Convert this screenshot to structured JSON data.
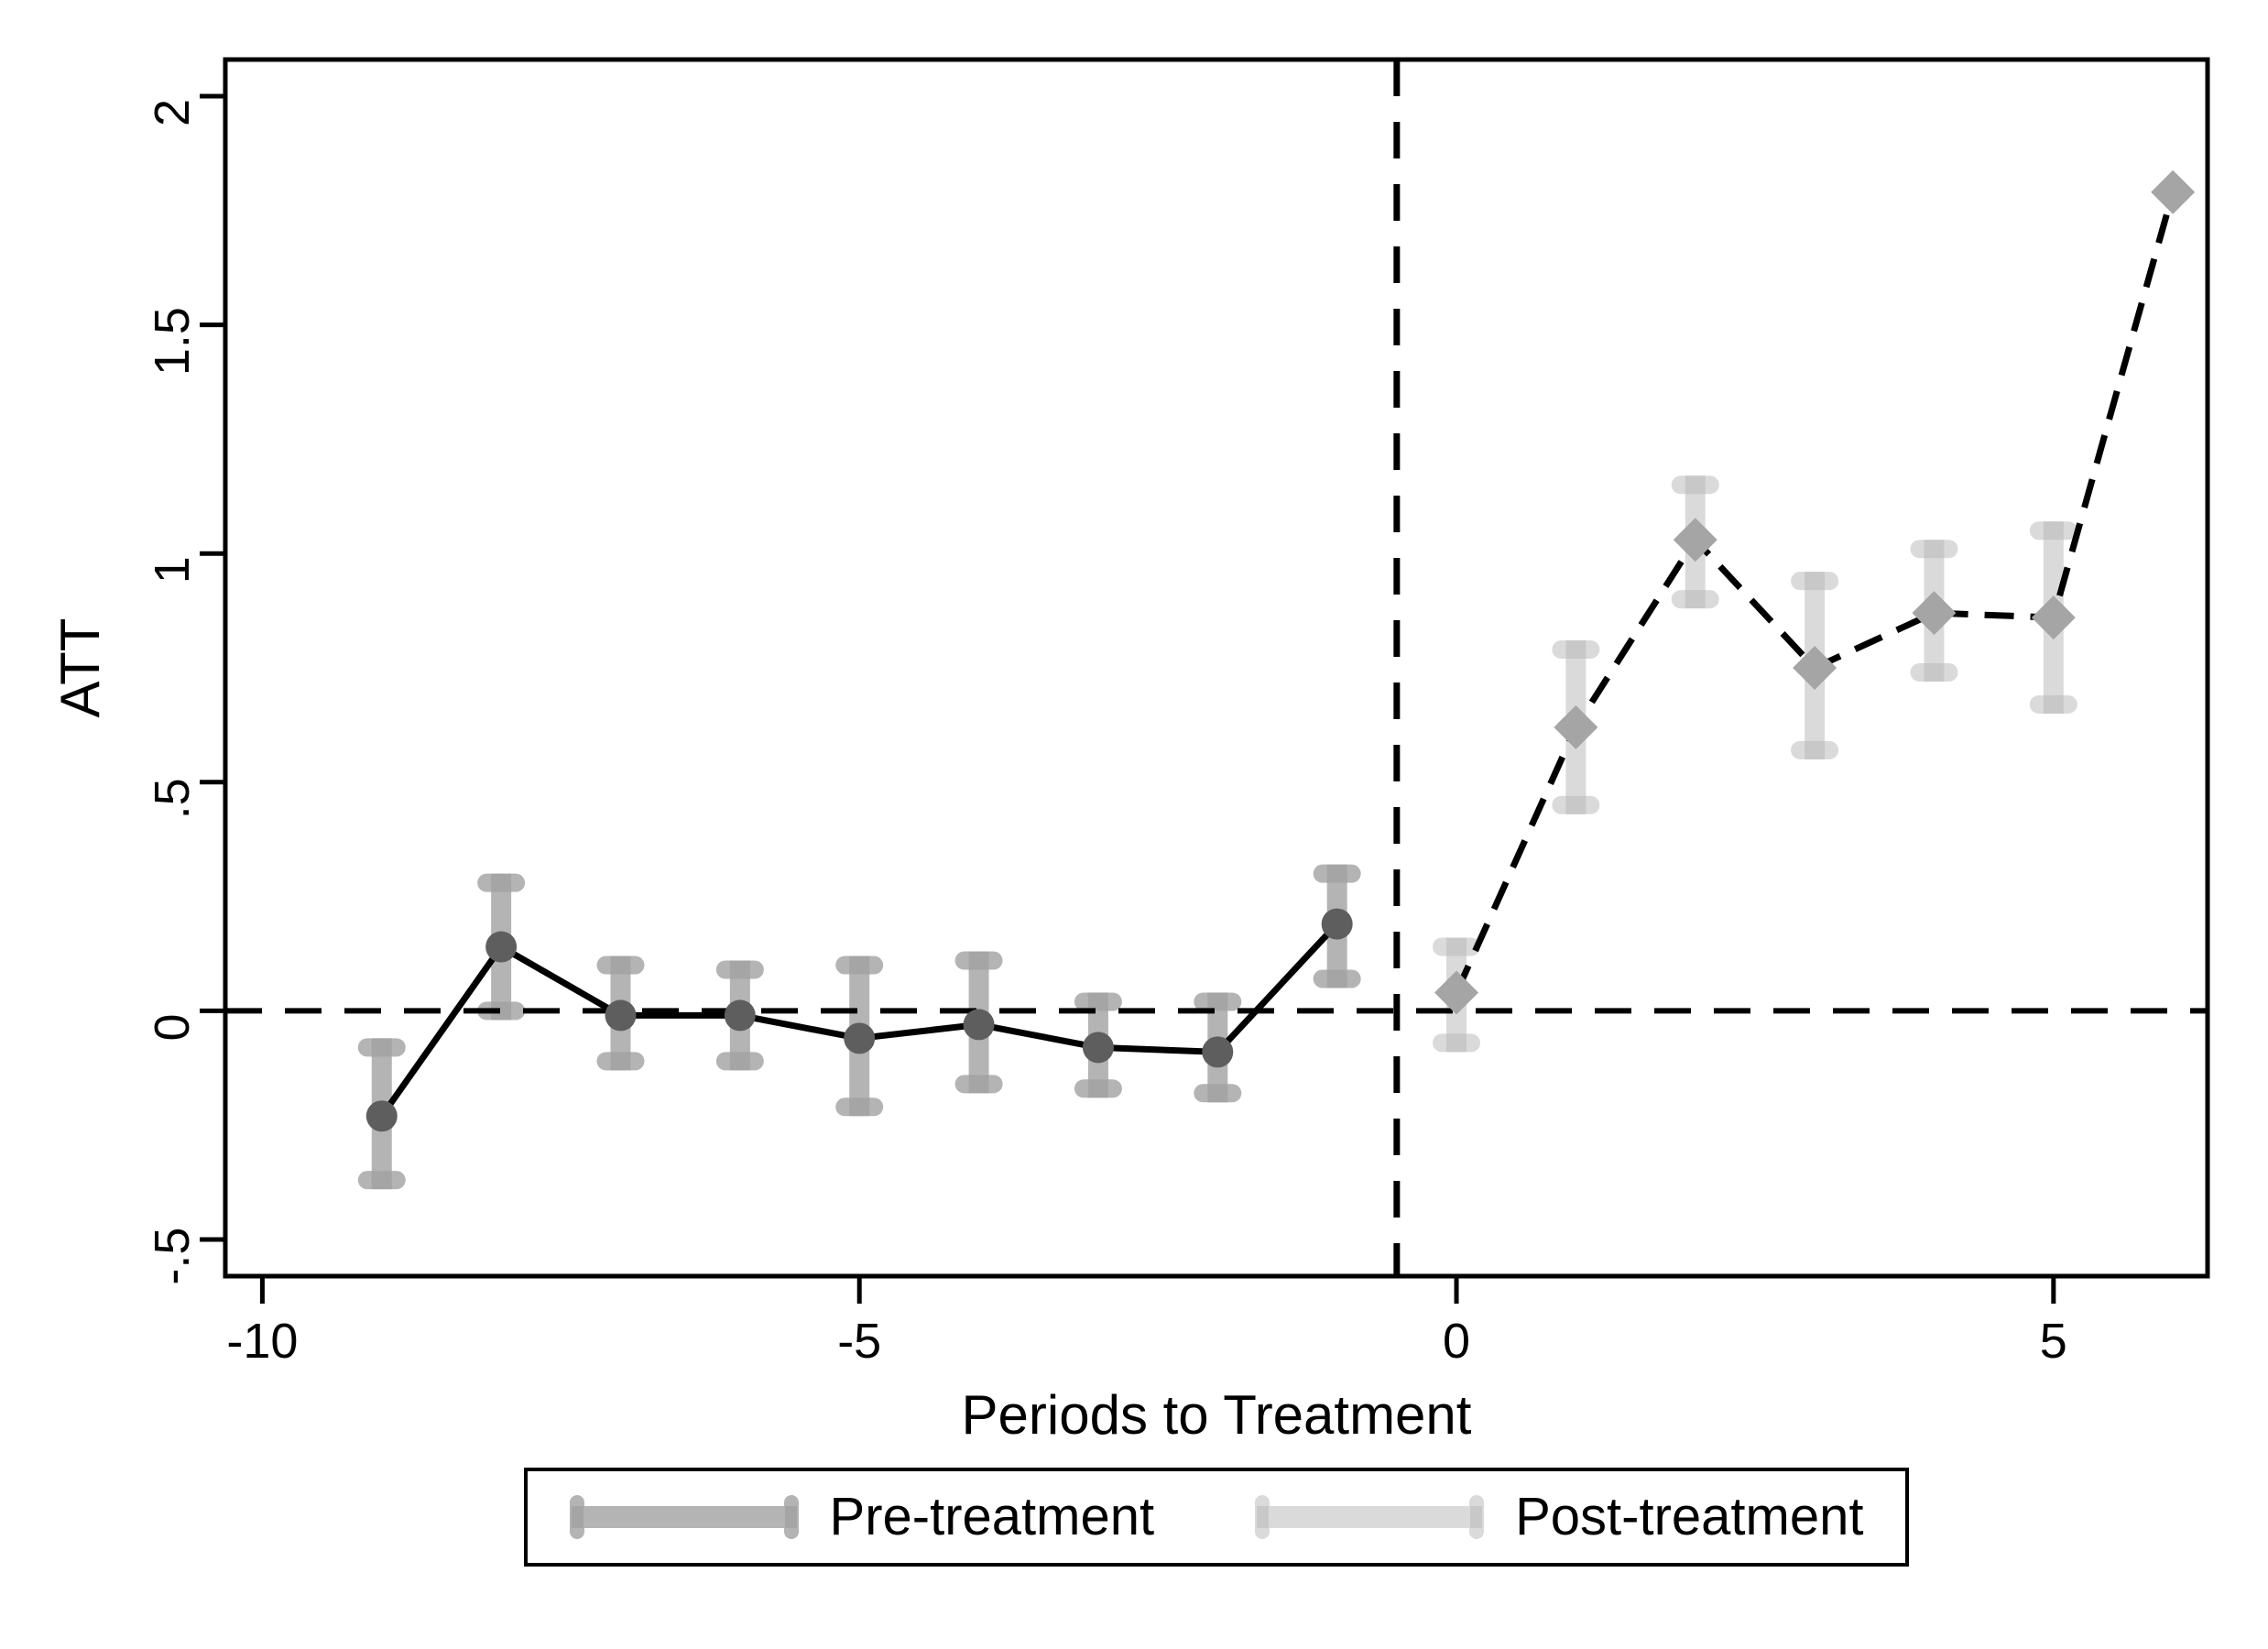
{
  "figure": {
    "background": "#ffffff",
    "axis_color": "#000000"
  },
  "chart_data": {
    "type": "line",
    "title": "",
    "xlabel": "Periods to Treatment",
    "ylabel": "ATT",
    "xlim": [
      -10.31,
      6.29
    ],
    "ylim": [
      -0.58,
      2.08
    ],
    "grid": false,
    "x_ticks": [
      {
        "value": -10,
        "label": "-10"
      },
      {
        "value": -5,
        "label": "-5"
      },
      {
        "value": 0,
        "label": "0"
      },
      {
        "value": 5,
        "label": "5"
      }
    ],
    "y_ticks": [
      {
        "value": 2,
        "label": "2"
      },
      {
        "value": 1.5,
        "label": "1.5"
      },
      {
        "value": 1,
        "label": "1"
      },
      {
        "value": 0.5,
        "label": ".5"
      },
      {
        "value": 0,
        "label": "0"
      },
      {
        "value": -0.5,
        "label": "-.5"
      }
    ],
    "reference_lines": {
      "horizontal_y": 0,
      "vertical_x": -0.5,
      "style": "dashed",
      "color": "#000000"
    },
    "series": [
      {
        "name": "Pre-treatment",
        "marker": "circle",
        "line_style": "solid",
        "line_color": "#000000",
        "marker_color": "#5e5e5e",
        "ci_color": "#b4b4b4",
        "ci_cap_color": "#a5a5a5",
        "points": [
          {
            "t": -9,
            "att": -0.23,
            "lo": -0.37,
            "hi": -0.08
          },
          {
            "t": -8,
            "att": 0.14,
            "lo": 0.0,
            "hi": 0.28
          },
          {
            "t": -7,
            "att": -0.01,
            "lo": -0.11,
            "hi": 0.1
          },
          {
            "t": -6,
            "att": -0.01,
            "lo": -0.11,
            "hi": 0.09
          },
          {
            "t": -5,
            "att": -0.06,
            "lo": -0.21,
            "hi": 0.1
          },
          {
            "t": -4,
            "att": -0.03,
            "lo": -0.16,
            "hi": 0.11
          },
          {
            "t": -3,
            "att": -0.08,
            "lo": -0.17,
            "hi": 0.02
          },
          {
            "t": -2,
            "att": -0.09,
            "lo": -0.18,
            "hi": 0.02
          },
          {
            "t": -1,
            "att": 0.19,
            "lo": 0.07,
            "hi": 0.3
          }
        ]
      },
      {
        "name": "Post-treatment",
        "marker": "diamond",
        "line_style": "dashed",
        "line_color": "#000000",
        "marker_color": "#a5a5a5",
        "ci_color": "#dadada",
        "ci_cap_color": "#c8c8c8",
        "points": [
          {
            "t": 0,
            "att": 0.04,
            "lo": -0.07,
            "hi": 0.14
          },
          {
            "t": 1,
            "att": 0.62,
            "lo": 0.45,
            "hi": 0.79
          },
          {
            "t": 2,
            "att": 1.03,
            "lo": 0.9,
            "hi": 1.15
          },
          {
            "t": 3,
            "att": 0.75,
            "lo": 0.57,
            "hi": 0.94
          },
          {
            "t": 4,
            "att": 0.87,
            "lo": 0.74,
            "hi": 1.01
          },
          {
            "t": 5,
            "att": 0.86,
            "lo": 0.67,
            "hi": 1.05
          },
          {
            "t": 6,
            "att": 1.79,
            "lo": null,
            "hi": null
          }
        ]
      }
    ],
    "legend": {
      "position": "bottom-center",
      "entries": [
        "Pre-treatment",
        "Post-treatment"
      ]
    }
  }
}
